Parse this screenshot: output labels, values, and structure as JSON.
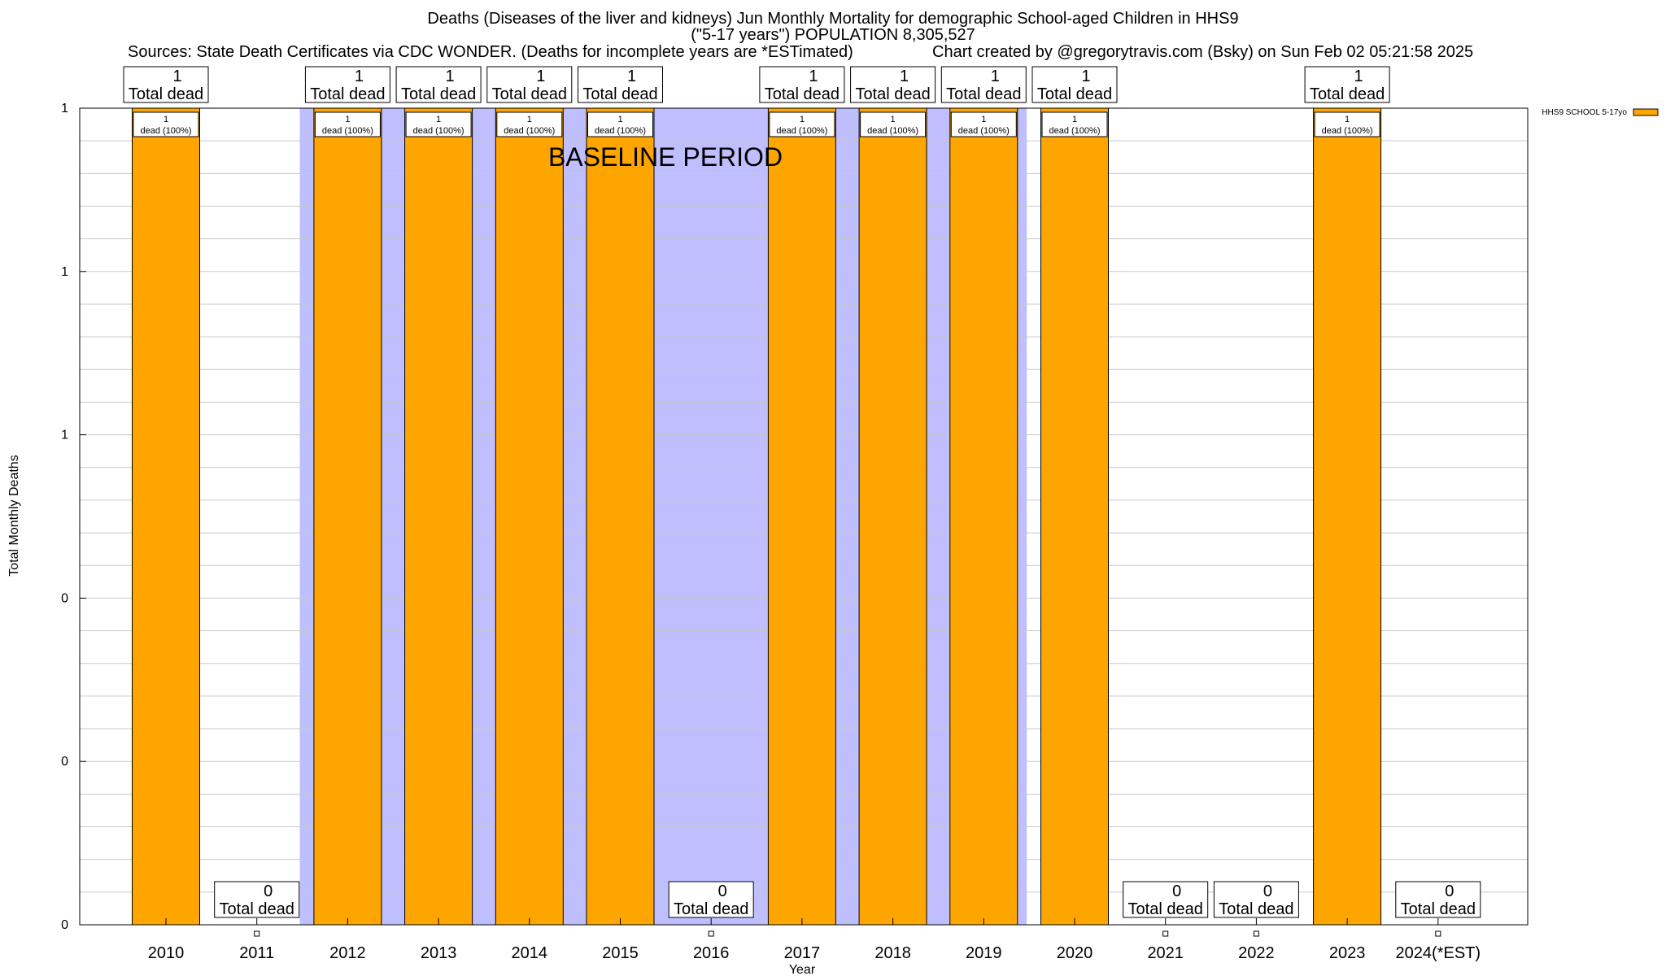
{
  "title": {
    "line1": "Deaths (Diseases of the liver and kidneys) Jun Monthly Mortality for demographic School-aged Children in HHS9",
    "line2": "(\"5-17 years\") POPULATION 8,305,527",
    "sources": "Sources: State Death Certificates via CDC WONDER. (Deaths for incomplete years are *ESTimated)",
    "credit": "Chart created by @gregorytravis.com (Bsky) on Sun Feb 02 05:21:58 2025"
  },
  "chart_data": {
    "type": "bar",
    "title": "Deaths (Diseases of the liver and kidneys) Jun Monthly Mortality for demographic School-aged Children in HHS9",
    "xlabel": "Year",
    "ylabel": "Total Monthly Deaths",
    "ylim": [
      0,
      1
    ],
    "y_tick_labels": [
      "0",
      "0",
      "0",
      "1",
      "1",
      "1"
    ],
    "categories": [
      "2010",
      "2011",
      "2012",
      "2013",
      "2014",
      "2015",
      "2016",
      "2017",
      "2018",
      "2019",
      "2020",
      "2021",
      "2022",
      "2023",
      "2024(*EST)"
    ],
    "series": [
      {
        "name": "HHS9 SCHOOL 5-17yo",
        "color": "#FFA500",
        "values": [
          1,
          0,
          1,
          1,
          1,
          1,
          0,
          1,
          1,
          1,
          1,
          0,
          0,
          1,
          0
        ]
      }
    ],
    "top_labels": [
      "1",
      "0",
      "1",
      "1",
      "1",
      "1",
      "0",
      "1",
      "1",
      "1",
      "1",
      "0",
      "0",
      "1",
      "0"
    ],
    "top_label_suffix": "Total dead",
    "inner_labels": [
      "1",
      "",
      "1",
      "1",
      "1",
      "1",
      "",
      "1",
      "1",
      "1",
      "1",
      "",
      "",
      "1",
      ""
    ],
    "inner_label_suffix": "dead (100%)",
    "baseline_period": {
      "label": "BASELINE PERIOD",
      "from": "2012",
      "to": "2019",
      "color": "#BFBFFF"
    },
    "grid": true,
    "legend": "top-right"
  }
}
